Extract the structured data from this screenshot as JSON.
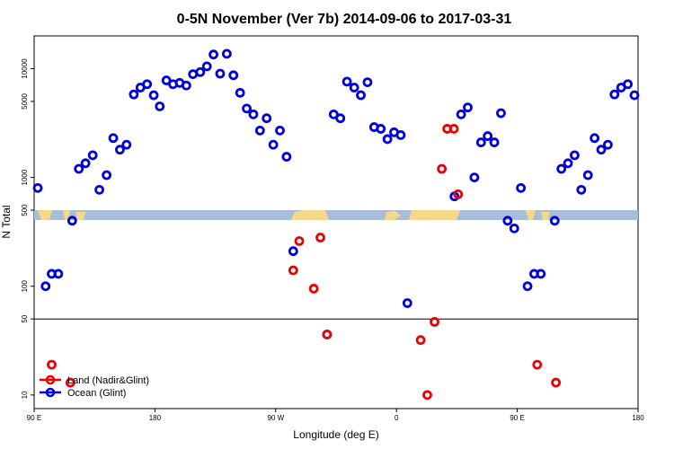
{
  "chart_data": {
    "type": "scatter",
    "title": "0-5N November (Ver 7b)   2014-09-06 to 2017-03-31",
    "xlabel": "Longitude (deg E)",
    "ylabel": "N Total",
    "y_scale": "log",
    "ylim": [
      7.5,
      20000
    ],
    "x_ticks": [
      "90 E",
      "180",
      "90 W",
      "0",
      "90 E",
      "180"
    ],
    "y_ticks": [
      {
        "value": 10,
        "label": "10"
      },
      {
        "value": 50,
        "label": "50"
      },
      {
        "value": 100,
        "label": "100"
      },
      {
        "value": 500,
        "label": "500"
      },
      {
        "value": 1000,
        "label": "1000"
      },
      {
        "value": 5000,
        "label": "5000"
      },
      {
        "value": 10000,
        "label": "10000"
      }
    ],
    "reference_line": 50,
    "grid": false,
    "legend_position": "bottom-left",
    "series": [
      {
        "name": "Land (Nadir&Glint)",
        "color": "#ee0000",
        "points": [
          {
            "x": 0.029,
            "y": 19
          },
          {
            "x": 0.06,
            "y": 13
          },
          {
            "x": 0.429,
            "y": 140
          },
          {
            "x": 0.439,
            "y": 260
          },
          {
            "x": 0.463,
            "y": 95
          },
          {
            "x": 0.474,
            "y": 280
          },
          {
            "x": 0.485,
            "y": 36
          },
          {
            "x": 0.64,
            "y": 32
          },
          {
            "x": 0.651,
            "y": 10
          },
          {
            "x": 0.663,
            "y": 47
          },
          {
            "x": 0.675,
            "y": 1200
          },
          {
            "x": 0.684,
            "y": 2800
          },
          {
            "x": 0.695,
            "y": 2800
          },
          {
            "x": 0.702,
            "y": 700
          },
          {
            "x": 0.833,
            "y": 19
          },
          {
            "x": 0.864,
            "y": 13
          }
        ]
      },
      {
        "name": "Ocean (Glint)",
        "color": "#0000dd",
        "points": [
          {
            "x": 0.006,
            "y": 800
          },
          {
            "x": 0.019,
            "y": 100
          },
          {
            "x": 0.029,
            "y": 130
          },
          {
            "x": 0.04,
            "y": 130
          },
          {
            "x": 0.063,
            "y": 400
          },
          {
            "x": 0.074,
            "y": 1200
          },
          {
            "x": 0.085,
            "y": 1350
          },
          {
            "x": 0.097,
            "y": 1600
          },
          {
            "x": 0.108,
            "y": 770
          },
          {
            "x": 0.12,
            "y": 1050
          },
          {
            "x": 0.131,
            "y": 2300
          },
          {
            "x": 0.142,
            "y": 1800
          },
          {
            "x": 0.153,
            "y": 2000
          },
          {
            "x": 0.165,
            "y": 5800
          },
          {
            "x": 0.176,
            "y": 6700
          },
          {
            "x": 0.187,
            "y": 7200
          },
          {
            "x": 0.198,
            "y": 5700
          },
          {
            "x": 0.208,
            "y": 4500
          },
          {
            "x": 0.219,
            "y": 7800
          },
          {
            "x": 0.23,
            "y": 7200
          },
          {
            "x": 0.241,
            "y": 7400
          },
          {
            "x": 0.252,
            "y": 7000
          },
          {
            "x": 0.263,
            "y": 8900
          },
          {
            "x": 0.275,
            "y": 9300
          },
          {
            "x": 0.286,
            "y": 10500
          },
          {
            "x": 0.297,
            "y": 13500
          },
          {
            "x": 0.308,
            "y": 9000
          },
          {
            "x": 0.319,
            "y": 13700
          },
          {
            "x": 0.33,
            "y": 8700
          },
          {
            "x": 0.341,
            "y": 6000
          },
          {
            "x": 0.352,
            "y": 4300
          },
          {
            "x": 0.363,
            "y": 3800
          },
          {
            "x": 0.374,
            "y": 2700
          },
          {
            "x": 0.385,
            "y": 3500
          },
          {
            "x": 0.396,
            "y": 2000
          },
          {
            "x": 0.407,
            "y": 2700
          },
          {
            "x": 0.418,
            "y": 1550
          },
          {
            "x": 0.429,
            "y": 210
          },
          {
            "x": 0.485,
            "y": 36
          },
          {
            "x": 0.496,
            "y": 3800
          },
          {
            "x": 0.507,
            "y": 3500
          },
          {
            "x": 0.518,
            "y": 7600
          },
          {
            "x": 0.53,
            "y": 6700
          },
          {
            "x": 0.541,
            "y": 5700
          },
          {
            "x": 0.552,
            "y": 7500
          },
          {
            "x": 0.563,
            "y": 2900
          },
          {
            "x": 0.574,
            "y": 2800
          },
          {
            "x": 0.585,
            "y": 2250
          },
          {
            "x": 0.596,
            "y": 2600
          },
          {
            "x": 0.607,
            "y": 2450
          },
          {
            "x": 0.618,
            "y": 70
          },
          {
            "x": 0.696,
            "y": 670
          },
          {
            "x": 0.707,
            "y": 3800
          },
          {
            "x": 0.718,
            "y": 4400
          },
          {
            "x": 0.729,
            "y": 1000
          },
          {
            "x": 0.74,
            "y": 2100
          },
          {
            "x": 0.751,
            "y": 2400
          },
          {
            "x": 0.762,
            "y": 2100
          },
          {
            "x": 0.773,
            "y": 3900
          },
          {
            "x": 0.784,
            "y": 400
          },
          {
            "x": 0.795,
            "y": 340
          },
          {
            "x": 0.806,
            "y": 800
          },
          {
            "x": 0.817,
            "y": 100
          },
          {
            "x": 0.828,
            "y": 130
          },
          {
            "x": 0.839,
            "y": 130
          },
          {
            "x": 0.862,
            "y": 400
          },
          {
            "x": 0.873,
            "y": 1200
          },
          {
            "x": 0.884,
            "y": 1350
          },
          {
            "x": 0.895,
            "y": 1600
          },
          {
            "x": 0.906,
            "y": 770
          },
          {
            "x": 0.917,
            "y": 1050
          },
          {
            "x": 0.928,
            "y": 2300
          },
          {
            "x": 0.939,
            "y": 1800
          },
          {
            "x": 0.95,
            "y": 2000
          },
          {
            "x": 0.961,
            "y": 5800
          },
          {
            "x": 0.972,
            "y": 6700
          },
          {
            "x": 0.983,
            "y": 7200
          },
          {
            "x": 0.994,
            "y": 5700
          }
        ]
      }
    ]
  }
}
